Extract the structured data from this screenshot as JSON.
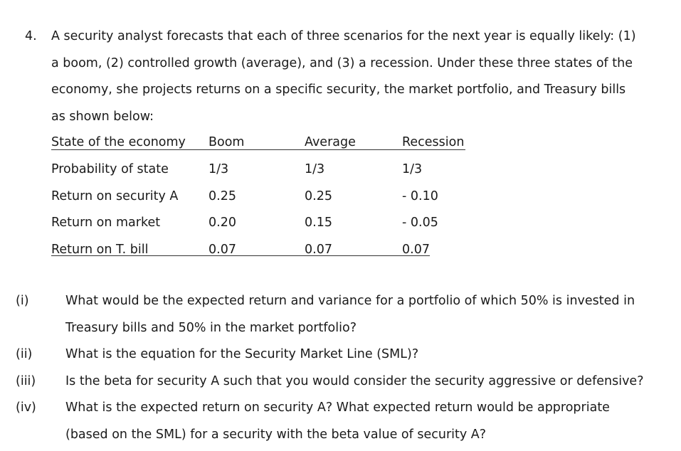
{
  "question": {
    "number": "4.",
    "lines": [
      "A security analyst forecasts that each of three scenarios for the next year is equally likely: (1)",
      "a boom, (2) controlled growth (average), and (3) a recession. Under these three states of the",
      "economy, she projects returns on a specific security, the market portfolio, and Treasury bills",
      "as shown below:"
    ]
  },
  "table": {
    "header": [
      "State of the economy",
      "Boom",
      "Average",
      "Recession"
    ],
    "rows": [
      [
        "Probability of state",
        "1/3",
        "1/3",
        "1/3"
      ],
      [
        "Return on security A",
        "0.25",
        "0.25",
        "- 0.10"
      ],
      [
        "Return on market",
        "0.20",
        "0.15",
        "- 0.05"
      ],
      [
        "Return on T. bill",
        "0.07",
        "0.07",
        "0.07"
      ]
    ]
  },
  "subquestions": [
    {
      "label": "(i)",
      "lines": [
        "What would be the expected return and variance for a portfolio of which 50% is invested in",
        "Treasury bills and 50% in the market portfolio?"
      ]
    },
    {
      "label": "(ii)",
      "lines": [
        "What is the equation for the Security Market Line (SML)?"
      ]
    },
    {
      "label": "(iii)",
      "lines": [
        "Is the beta for security A such that you would consider the security aggressive or defensive?"
      ]
    },
    {
      "label": "(iv)",
      "lines": [
        "What is the expected return on security A? What expected return would be appropriate",
        "(based on the SML) for a security with the beta value of security A?"
      ]
    }
  ]
}
